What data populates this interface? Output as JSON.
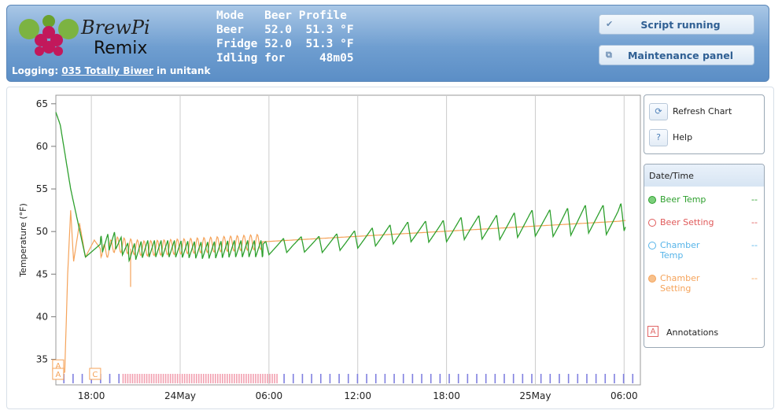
{
  "header": {
    "logo_line1": "BrewPi",
    "logo_line2": "Remix",
    "logging_prefix": "Logging:",
    "logging_brew": "035 Totally Biwer",
    "logging_suffix": "in unitank",
    "lcd": [
      "Mode   Beer Profile",
      "Beer   52.0  51.3 °F",
      "Fridge 52.0  51.3 °F",
      "Idling for     48m05"
    ],
    "script_button": "Script running",
    "maintenance_button": "Maintenance panel"
  },
  "controls": {
    "refresh_label": "Refresh Chart",
    "help_label": "Help"
  },
  "legend": {
    "header": "Date/Time",
    "items": [
      {
        "name": "Beer Temp",
        "value": "--",
        "color": "#2ea02e"
      },
      {
        "name": "Beer Setting",
        "value": "--",
        "color": "#e05a5a"
      },
      {
        "name": "Chamber Temp",
        "value": "--",
        "color": "#56b4e9"
      },
      {
        "name": "Chamber Setting",
        "value": "--",
        "color": "#f5a35a"
      }
    ],
    "annotations_icon": "A",
    "annotations_label": "Annotations"
  },
  "colors": {
    "beer_temp": "#2ea02e",
    "chamber_setting": "#f5a35a",
    "grid": "#cccccc",
    "state_pink": "#f2a0b0",
    "state_purple": "#8080e0"
  },
  "chart_data": {
    "type": "line",
    "ylabel": "Temperature (°F)",
    "ylim": [
      32,
      66
    ],
    "yticks": [
      35,
      40,
      45,
      50,
      55,
      60,
      65
    ],
    "xticks": [
      "18:00",
      "24May",
      "06:00",
      "12:00",
      "18:00",
      "25May",
      "06:00"
    ],
    "annotations": [
      "A",
      "A",
      "C"
    ],
    "series": [
      {
        "name": "Beer Temp",
        "color": "#2ea02e",
        "x_hours": [
          0,
          0.3,
          1,
          2,
          3,
          4,
          5,
          6,
          8,
          10,
          12,
          14,
          16,
          18,
          20,
          22,
          24,
          26,
          28,
          30,
          32,
          34,
          36,
          38,
          38.5
        ],
        "y": [
          64,
          62.5,
          55,
          47,
          48.5,
          49,
          47.5,
          48,
          48,
          47.8,
          48,
          48,
          48.5,
          48.5,
          49,
          49.5,
          50,
          50,
          50.5,
          50.5,
          51,
          51,
          51.5,
          51.3,
          52
        ]
      },
      {
        "name": "Chamber Setting",
        "color": "#f5a35a",
        "x_hours": [
          0,
          0.6,
          0.8,
          1.0,
          1.2,
          1.6,
          2,
          2.6,
          3.2,
          4,
          6,
          8,
          10,
          12,
          14,
          16,
          18,
          20,
          22,
          24,
          26,
          28,
          30,
          32,
          34,
          36,
          38,
          38.5
        ],
        "y": [
          33,
          33.5,
          45,
          52.5,
          46.5,
          51,
          47,
          49,
          47.5,
          48.5,
          48,
          48.2,
          48.4,
          48.6,
          48.8,
          49,
          49.2,
          49.4,
          49.6,
          49.8,
          50,
          50.2,
          50.4,
          50.6,
          50.8,
          51,
          51.2,
          51.3
        ]
      }
    ],
    "state_bands": {
      "pink_range_hours": [
        4.5,
        15
      ],
      "purple_ticks": "regular"
    }
  }
}
